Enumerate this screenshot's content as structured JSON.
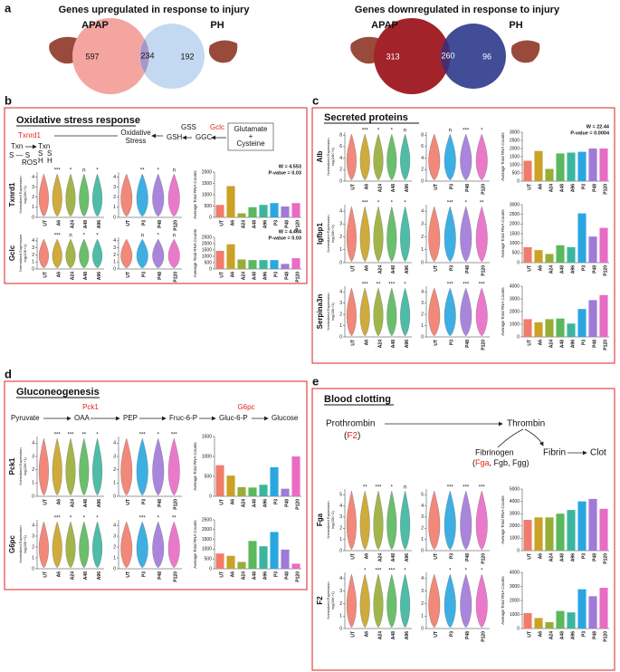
{
  "panel_a": {
    "letter": "a",
    "left": {
      "title": "Genes upregulated in response to injury",
      "set1": "APAP",
      "set2": "PH",
      "only1": 597,
      "both": 234,
      "only2": 192
    },
    "right": {
      "title": "Genes downregulated in response to injury",
      "set1": "APAP",
      "set2": "PH",
      "only1": 313,
      "both": 260,
      "only2": 96
    }
  },
  "bar_categories": [
    "UT",
    "A6",
    "A24",
    "A48",
    "A96",
    "P3",
    "P48",
    "P120"
  ],
  "bar_colors": [
    "#f07c6c",
    "#c9a227",
    "#98ad38",
    "#5cb85c",
    "#3bb59e",
    "#2aa7e0",
    "#a07ad8",
    "#e86cc4"
  ],
  "violin_a_categories": [
    "UT",
    "A6",
    "A24",
    "A48",
    "A96"
  ],
  "violin_p_categories": [
    "UT",
    "P3",
    "P48",
    "P120"
  ],
  "violin_ylabel": [
    "Normalized Expression",
    "log(10K+1)"
  ],
  "bar_ylabel": "Average Total RNA Counts",
  "panels": [
    {
      "letter": "b",
      "title": "Oxidative stress response",
      "pathway": [
        "Txnrd1",
        "Oxidative",
        "Stress",
        "GSS",
        "GSH",
        "GGC",
        "Gclc",
        "Glutamate",
        "+",
        "Cysteine",
        "Txn",
        "Txn",
        "S — S",
        "S",
        "S",
        "H",
        "H",
        "ROS"
      ],
      "genes": [
        {
          "name": "Txnrd1",
          "violin_ylim": [
            0,
            4.5
          ],
          "violin_yticks": [
            0,
            1,
            2,
            3,
            4
          ],
          "sig_a": [
            null,
            "***",
            "*",
            "n",
            "*"
          ],
          "sig_p": [
            null,
            "**",
            "*",
            "n"
          ],
          "bar_ylim": [
            0,
            2000
          ],
          "bar_yticks": [
            0,
            500,
            1000,
            1500,
            2000
          ],
          "bar_values": [
            550,
            1380,
            180,
            450,
            550,
            630,
            480,
            630
          ],
          "stats": [
            "W = 4.553",
            "P-value = 0.03"
          ]
        },
        {
          "name": "Gclc",
          "violin_ylim": [
            0,
            4.5
          ],
          "violin_yticks": [
            0,
            1,
            2,
            3,
            4
          ],
          "sig_a": [
            null,
            "***",
            "n",
            "*",
            "*"
          ],
          "sig_p": [
            null,
            "n",
            "*",
            "n"
          ],
          "bar_ylim": [
            0,
            2500
          ],
          "bar_yticks": [
            0,
            500,
            1000,
            1500,
            2000,
            2500
          ],
          "bar_values": [
            1430,
            1950,
            750,
            700,
            700,
            700,
            400,
            850
          ],
          "stats": [
            "W = 4.464",
            "P-value = 0.03"
          ]
        }
      ]
    },
    {
      "letter": "c",
      "title": "Secreted proteins",
      "pathway": [],
      "genes": [
        {
          "name": "Alb",
          "violin_ylim": [
            0,
            8.5
          ],
          "violin_yticks": [
            0,
            2,
            4,
            6,
            8
          ],
          "sig_a": [
            null,
            "***",
            "*",
            "*",
            "n"
          ],
          "sig_p": [
            null,
            "n",
            "***",
            "*"
          ],
          "bar_ylim": [
            0,
            3000
          ],
          "bar_yticks": [
            0,
            500,
            1000,
            1500,
            2000,
            2500,
            3000
          ],
          "bar_values": [
            1250,
            1850,
            750,
            1700,
            1750,
            1800,
            2000,
            2000
          ],
          "stats": [
            "W = 22.44",
            "P-value = 0.0004"
          ]
        },
        {
          "name": "Igfbp1",
          "violin_ylim": [
            0,
            4.5
          ],
          "violin_yticks": [
            0,
            1,
            2,
            3,
            4
          ],
          "sig_a": [
            null,
            "***",
            "*",
            "*",
            "*"
          ],
          "sig_p": [
            null,
            "***",
            "*",
            "**"
          ],
          "bar_ylim": [
            0,
            3000
          ],
          "bar_yticks": [
            0,
            500,
            1000,
            1500,
            2000,
            2500,
            3000
          ],
          "bar_values": [
            800,
            650,
            450,
            900,
            800,
            2550,
            1350,
            1800
          ]
        },
        {
          "name": "Serpina3n",
          "violin_ylim": [
            0,
            4.5
          ],
          "violin_yticks": [
            0,
            1,
            2,
            3,
            4
          ],
          "sig_a": [
            null,
            "***",
            "**",
            "***",
            "*"
          ],
          "sig_p": [
            null,
            "***",
            "***",
            "***"
          ],
          "bar_ylim": [
            0,
            4000
          ],
          "bar_yticks": [
            0,
            1000,
            2000,
            3000,
            4000
          ],
          "bar_values": [
            1400,
            1150,
            1400,
            1450,
            1050,
            2200,
            2900,
            3300
          ]
        }
      ]
    },
    {
      "letter": "d",
      "title": "Gluconeogenesis",
      "pathway": [
        "Pyruvate",
        "OAA",
        "Pck1",
        "PEP",
        "Fruc-6-P",
        "Gluc-6-P",
        "G6pc",
        "Glucose"
      ],
      "genes": [
        {
          "name": "Pck1",
          "violin_ylim": [
            0,
            4.5
          ],
          "violin_yticks": [
            0,
            1,
            2,
            3,
            4
          ],
          "sig_a": [
            null,
            "***",
            "***",
            "**",
            "*"
          ],
          "sig_p": [
            null,
            "***",
            "*",
            "***"
          ],
          "bar_ylim": [
            0,
            1500
          ],
          "bar_yticks": [
            0,
            500,
            1000,
            1500
          ],
          "bar_values": [
            780,
            520,
            230,
            220,
            290,
            730,
            190,
            1000
          ]
        },
        {
          "name": "G6pc",
          "violin_ylim": [
            0,
            4.5
          ],
          "violin_yticks": [
            0,
            1,
            2,
            3,
            4
          ],
          "sig_a": [
            null,
            "***",
            "*",
            "*",
            "*"
          ],
          "sig_p": [
            null,
            "***",
            "*",
            "**"
          ],
          "bar_ylim": [
            0,
            2500
          ],
          "bar_yticks": [
            0,
            500,
            1000,
            1500,
            2000,
            2500
          ],
          "bar_values": [
            780,
            660,
            350,
            1420,
            1150,
            1880,
            980,
            260
          ]
        }
      ]
    },
    {
      "letter": "e",
      "title": "Blood clotting",
      "pathway": [
        "Prothrombin",
        "(",
        "F2",
        ")",
        "Thrombin",
        "Fibrinogen",
        "(",
        "Fga",
        ", Fgb, Fgg)",
        "Fibrin",
        "Clot"
      ],
      "genes": [
        {
          "name": "Fga",
          "violin_ylim": [
            0,
            5.5
          ],
          "violin_yticks": [
            0,
            1,
            2,
            3,
            4,
            5
          ],
          "sig_a": [
            null,
            "**",
            "***",
            "*",
            "n"
          ],
          "sig_p": [
            null,
            "***",
            "***",
            "***"
          ],
          "bar_ylim": [
            0,
            5000
          ],
          "bar_yticks": [
            0,
            1000,
            2000,
            3000,
            4000,
            5000
          ],
          "bar_values": [
            2500,
            2700,
            2700,
            3000,
            3300,
            4000,
            4200,
            3400
          ]
        },
        {
          "name": "F2",
          "violin_ylim": [
            0,
            4.5
          ],
          "violin_yticks": [
            0,
            1,
            2,
            3,
            4
          ],
          "sig_a": [
            null,
            "*",
            "***",
            "***",
            "*"
          ],
          "sig_p": [
            null,
            "*",
            "*",
            "*"
          ],
          "bar_ylim": [
            0,
            4000
          ],
          "bar_yticks": [
            0,
            1000,
            2000,
            3000,
            4000
          ],
          "bar_values": [
            1100,
            750,
            450,
            1250,
            1150,
            2800,
            2300,
            2900
          ]
        }
      ]
    }
  ]
}
